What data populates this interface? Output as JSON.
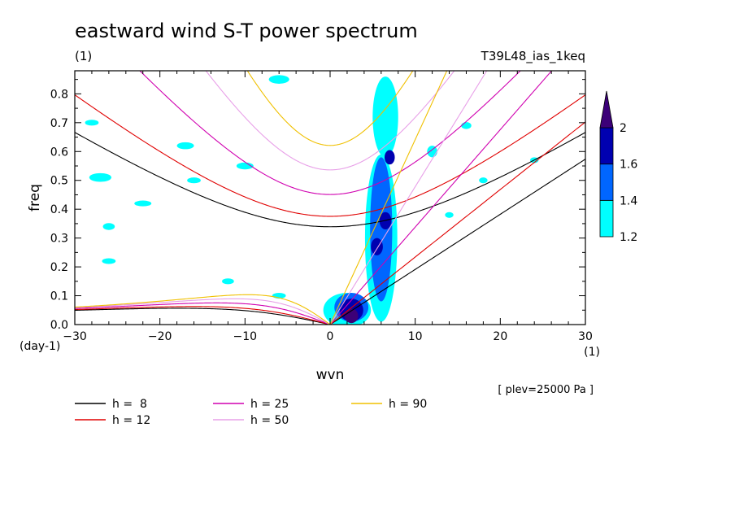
{
  "chart_data": {
    "type": "heatmap",
    "title": "eastward wind S-T power spectrum",
    "subtitle_left": "(1)",
    "subtitle_right": "T39L48_ias_1keq",
    "xlabel": "wvn",
    "ylabel": "freq",
    "x_unit": "(1)",
    "y_unit": "(day-1)",
    "annotation": "[ plev=25000 Pa ]",
    "xlim": [
      -30,
      30
    ],
    "ylim": [
      0,
      0.88
    ],
    "x_ticks": [
      -30,
      -20,
      -10,
      0,
      10,
      20,
      30
    ],
    "y_ticks": [
      0.0,
      0.1,
      0.2,
      0.3,
      0.4,
      0.5,
      0.6,
      0.7,
      0.8
    ],
    "grid": false,
    "colorbar": {
      "levels": [
        1.2,
        1.4,
        1.6,
        2
      ],
      "colors": [
        "#00ffff",
        "#0066ff",
        "#0000b0",
        "#3c0078"
      ]
    },
    "dispersion_curves": [
      {
        "name": "h =  8",
        "h": 8,
        "color": "#000000"
      },
      {
        "name": "h = 12",
        "h": 12,
        "color": "#e00000"
      },
      {
        "name": "h = 25",
        "h": 25,
        "color": "#d000b0"
      },
      {
        "name": "h = 50",
        "h": 50,
        "color": "#e8a0e8"
      },
      {
        "name": "h = 90",
        "h": 90,
        "color": "#f0c000"
      }
    ],
    "power_regions": [
      {
        "level": 1.2,
        "k": 6,
        "f": 0.3,
        "rk": 1.9,
        "rf": 0.29
      },
      {
        "level": 1.2,
        "k": 6.5,
        "f": 0.72,
        "rk": 1.5,
        "rf": 0.14
      },
      {
        "level": 1.2,
        "k": 2,
        "f": 0.05,
        "rk": 2.8,
        "rf": 0.06
      },
      {
        "level": 1.4,
        "k": 6,
        "f": 0.33,
        "rk": 1.3,
        "rf": 0.25
      },
      {
        "level": 1.4,
        "k": 2.5,
        "f": 0.06,
        "rk": 2.0,
        "rf": 0.05
      },
      {
        "level": 1.6,
        "k": 2.5,
        "f": 0.05,
        "rk": 1.4,
        "rf": 0.04
      },
      {
        "level": 1.6,
        "k": 5.5,
        "f": 0.27,
        "rk": 0.7,
        "rf": 0.03
      },
      {
        "level": 1.6,
        "k": 6.5,
        "f": 0.36,
        "rk": 0.7,
        "rf": 0.03
      },
      {
        "level": 1.6,
        "k": 7.0,
        "f": 0.58,
        "rk": 0.6,
        "rf": 0.025
      },
      {
        "level": 2,
        "k": 2.5,
        "f": 0.03,
        "rk": 0.8,
        "rf": 0.025
      },
      {
        "level": 1.2,
        "k": -28,
        "f": 0.7,
        "rk": 0.8,
        "rf": 0.01
      },
      {
        "level": 1.2,
        "k": -27,
        "f": 0.51,
        "rk": 1.3,
        "rf": 0.015
      },
      {
        "level": 1.2,
        "k": -22,
        "f": 0.42,
        "rk": 1.0,
        "rf": 0.01
      },
      {
        "level": 1.2,
        "k": -26,
        "f": 0.34,
        "rk": 0.7,
        "rf": 0.012
      },
      {
        "level": 1.2,
        "k": -17,
        "f": 0.62,
        "rk": 1.0,
        "rf": 0.012
      },
      {
        "level": 1.2,
        "k": -10,
        "f": 0.55,
        "rk": 1.0,
        "rf": 0.012
      },
      {
        "level": 1.2,
        "k": -6,
        "f": 0.85,
        "rk": 1.2,
        "rf": 0.015
      },
      {
        "level": 1.2,
        "k": -6,
        "f": 0.1,
        "rk": 0.8,
        "rf": 0.01
      },
      {
        "level": 1.2,
        "k": -26,
        "f": 0.22,
        "rk": 0.8,
        "rf": 0.01
      },
      {
        "level": 1.2,
        "k": -16,
        "f": 0.5,
        "rk": 0.8,
        "rf": 0.01
      },
      {
        "level": 1.2,
        "k": -12,
        "f": 0.15,
        "rk": 0.7,
        "rf": 0.01
      },
      {
        "level": 1.2,
        "k": 12,
        "f": 0.6,
        "rk": 0.6,
        "rf": 0.02
      },
      {
        "level": 1.2,
        "k": 16,
        "f": 0.69,
        "rk": 0.6,
        "rf": 0.012
      },
      {
        "level": 1.2,
        "k": 24,
        "f": 0.57,
        "rk": 0.5,
        "rf": 0.01
      },
      {
        "level": 1.2,
        "k": 14,
        "f": 0.38,
        "rk": 0.5,
        "rf": 0.01
      },
      {
        "level": 1.2,
        "k": 18,
        "f": 0.5,
        "rk": 0.5,
        "rf": 0.01
      }
    ]
  }
}
